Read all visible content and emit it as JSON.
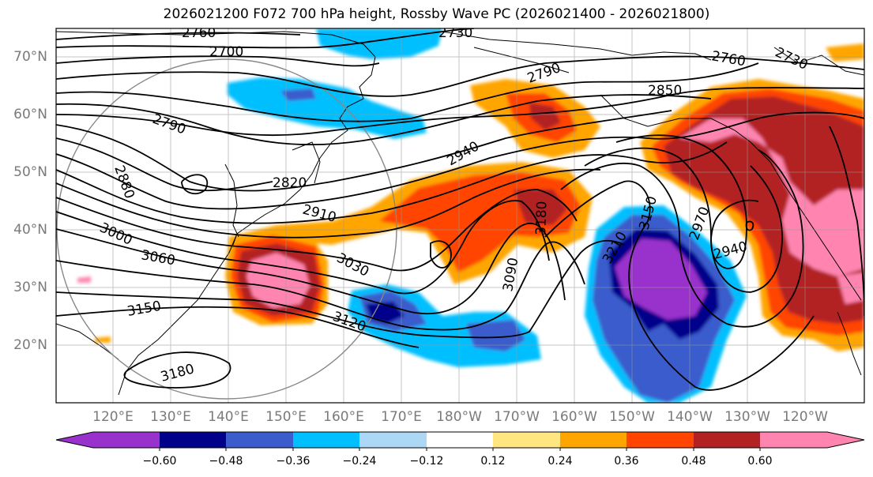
{
  "title": "2026021200 F072 700 hPa height, Rossby Wave PC (2026021400 - 2026021800)",
  "lat_labels": [
    "70°N",
    "60°N",
    "50°N",
    "40°N",
    "30°N",
    "20°N"
  ],
  "lon_labels": [
    "120°E",
    "130°E",
    "140°E",
    "150°E",
    "160°E",
    "170°E",
    "180°W",
    "170°W",
    "160°W",
    "150°W",
    "140°W",
    "130°W",
    "120°W"
  ],
  "colorbar": {
    "ticks": [
      "−0.60",
      "−0.48",
      "−0.36",
      "−0.24",
      "−0.12",
      "0.12",
      "0.24",
      "0.36",
      "0.48",
      "0.60"
    ],
    "colors": [
      "#9932cc",
      "#00008b",
      "#3a5ccc",
      "#00bfff",
      "#add8f5",
      "#ffffff",
      "#ffe680",
      "#ffa500",
      "#ff4500",
      "#b22222",
      "#ff85b0"
    ]
  },
  "contour_labels": [
    "2760",
    "2730",
    "2700",
    "2760",
    "2730",
    "2790",
    "2850",
    "2790",
    "2880",
    "2820",
    "2940",
    "2910",
    "3000",
    "3060",
    "3030",
    "3180",
    "3090",
    "3150",
    "3120",
    "3180",
    "3210",
    "3150",
    "2970",
    "2940"
  ]
}
